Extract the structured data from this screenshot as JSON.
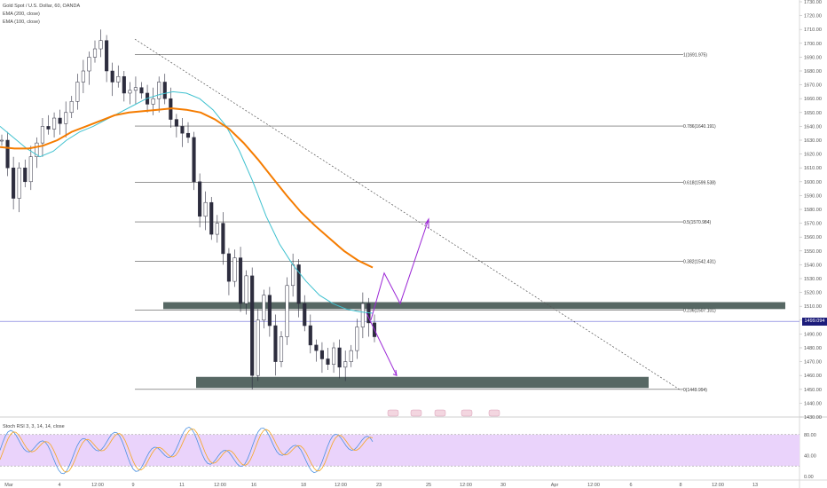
{
  "header": {
    "symbol_line": "Gold Spot / U.S. Dollar, 60, OANDA",
    "ema1_label": "EMA (200, close)",
    "ema2_label": "EMA (100, close)",
    "stoch_label": "Stoch RSI 3, 3, 14, 14, close"
  },
  "price_tag": "1499.094",
  "colors": {
    "ema200": "#f57c00",
    "ema100": "#3fc1cf",
    "zone": "#3a4d49",
    "arrows": "#9c27d6",
    "price_line": "#6a6ad8",
    "candle": "#2d2d3e",
    "stoch_k": "#4a90e2",
    "stoch_d": "#f5a623",
    "stoch_band": "#ead3fb"
  },
  "chart_data": {
    "type": "candlestick",
    "symbol": "Gold Spot / U.S. Dollar",
    "timeframe": "60",
    "source": "OANDA",
    "ylim": [
      1430,
      1730
    ],
    "y_ticks": [
      1730,
      1720,
      1710,
      1700,
      1690,
      1680,
      1670,
      1660,
      1650,
      1640,
      1630,
      1620,
      1610,
      1600,
      1590,
      1580,
      1570,
      1560,
      1550,
      1540,
      1530,
      1520,
      1510,
      1500,
      1490,
      1480,
      1470,
      1460,
      1450,
      1440,
      1430
    ],
    "x_ticks": [
      "Mar",
      "4",
      "12:00",
      "9",
      "11",
      "12:00",
      "16",
      "18",
      "12:00",
      "23",
      "25",
      "12:00",
      "30",
      "Apr",
      "12:00",
      "6",
      "8",
      "12:00",
      "13"
    ],
    "last_price": 1499.094,
    "fib_levels": [
      {
        "ratio": "1",
        "price": 1691.975,
        "label": "1(1691.975)"
      },
      {
        "ratio": "0.786",
        "price": 1640.191,
        "label": "0.786(1640.191)"
      },
      {
        "ratio": "0.618",
        "price": 1599.538,
        "label": "0.618(1599.538)"
      },
      {
        "ratio": "0.5",
        "price": 1570.984,
        "label": "0.5(1570.984)"
      },
      {
        "ratio": "0.382",
        "price": 1542.431,
        "label": "0.382(1542.431)"
      },
      {
        "ratio": "0.236",
        "price": 1507.101,
        "label": "0.236(1507.101)"
      },
      {
        "ratio": "0",
        "price": 1449.994,
        "label": "0(1449.994)"
      }
    ],
    "zones": [
      {
        "from": 1508,
        "to": 1513
      },
      {
        "from": 1451,
        "to": 1459
      }
    ],
    "trendline": {
      "from": {
        "index": 0.02,
        "price": 1703
      },
      "to": {
        "index": 0.64,
        "price": 1450
      }
    },
    "stoch": {
      "ylim": [
        0,
        100
      ],
      "y_ticks": [
        80,
        40,
        0
      ],
      "band": [
        20,
        80
      ],
      "label": "Stoch RSI 3, 3, 14, 14, close"
    },
    "series": [
      {
        "type": "ema",
        "values": [
          1640,
          1632,
          1624,
          1618,
          1622,
          1630,
          1636,
          1640,
          1645,
          1650,
          1655,
          1660,
          1663,
          1665,
          1664,
          1660,
          1652,
          1640,
          1622,
          1600,
          1575,
          1555,
          1540,
          1528,
          1518,
          1512,
          1508,
          1506,
          1505
        ]
      },
      {
        "type": "ema",
        "values": [
          1625,
          1624,
          1624,
          1626,
          1630,
          1636,
          1640,
          1644,
          1648,
          1650,
          1651,
          1652,
          1653,
          1652,
          1650,
          1645,
          1638,
          1628,
          1616,
          1603,
          1590,
          1578,
          1568,
          1559,
          1550,
          1543,
          1538
        ]
      },
      {
        "type": "close",
        "values": [
          1630,
          1610,
          1588,
          1610,
          1600,
          1618,
          1628,
          1640,
          1638,
          1646,
          1642,
          1650,
          1658,
          1672,
          1680,
          1690,
          1696,
          1702,
          1680,
          1672,
          1676,
          1664,
          1666,
          1668,
          1664,
          1656,
          1660,
          1672,
          1660,
          1645,
          1640,
          1635,
          1632,
          1600,
          1575,
          1585,
          1562,
          1570,
          1548,
          1528,
          1545,
          1512,
          1532,
          1460,
          1500,
          1518,
          1496,
          1470,
          1488,
          1525,
          1540,
          1512,
          1496,
          1482,
          1478,
          1472,
          1468,
          1480,
          1466,
          1470,
          1478,
          1495,
          1512,
          1498,
          1488
        ]
      }
    ]
  }
}
